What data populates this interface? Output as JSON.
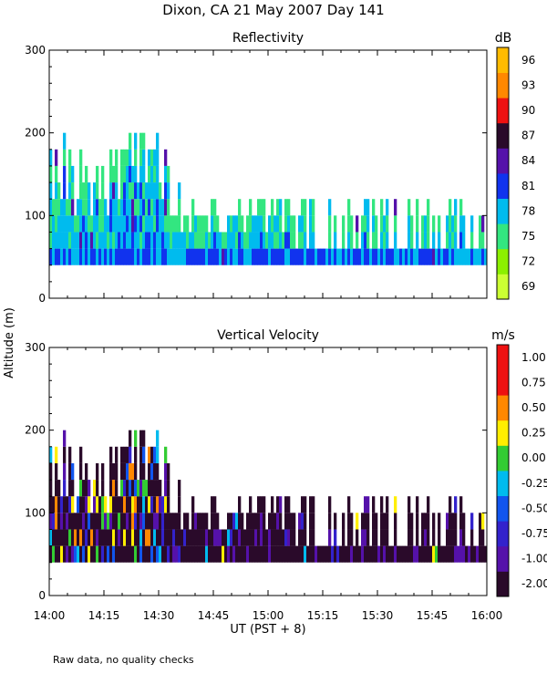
{
  "chart_data": [
    {
      "type": "heatmap",
      "panel": "reflectivity",
      "title": "Reflectivity",
      "colorbar_unit": "dB",
      "colorbar_labels": [
        "69",
        "72",
        "75",
        "78",
        "81",
        "84",
        "87",
        "90",
        "93",
        "96"
      ],
      "colorbar_colors": [
        "#ccff33",
        "#8cf000",
        "#33e680",
        "#00bbee",
        "#1133ee",
        "#5511aa",
        "#2a0a2a",
        "#ee1111",
        "#ff8800",
        "#ffbb00"
      ],
      "ylim": [
        0,
        300
      ],
      "yticks": [
        "0",
        "100",
        "200",
        "300"
      ],
      "echo_base_m": 40,
      "typical_top_m": 80,
      "max_top_m": 200
    },
    {
      "type": "heatmap",
      "panel": "vertical_velocity",
      "title": "Vertical Velocity",
      "colorbar_unit": "m/s",
      "colorbar_labels": [
        "-2.00",
        "-1.00",
        "-0.75",
        "-0.50",
        "-0.25",
        "0.00",
        "0.25",
        "0.50",
        "0.75",
        "1.00"
      ],
      "colorbar_colors": [
        "#2a0a2a",
        "#5511aa",
        "#3322cc",
        "#1155ee",
        "#00bbee",
        "#33cc33",
        "#ffee00",
        "#ff8800",
        "#ee1111",
        "#ee1111"
      ],
      "ylim": [
        0,
        300
      ],
      "yticks": [
        "0",
        "100",
        "200",
        "300"
      ],
      "echo_base_m": 40,
      "typical_top_m": 80,
      "max_top_m": 200
    }
  ],
  "figure": {
    "title": "Dixon, CA 21 May 2007  Day 141",
    "ylabel": "Altitude (m)",
    "xlabel": "UT  (PST + 8)",
    "xticks": [
      "14:00",
      "14:15",
      "14:30",
      "14:45",
      "15:00",
      "15:15",
      "15:30",
      "15:45",
      "16:00"
    ],
    "note": "Raw data, no quality checks"
  }
}
